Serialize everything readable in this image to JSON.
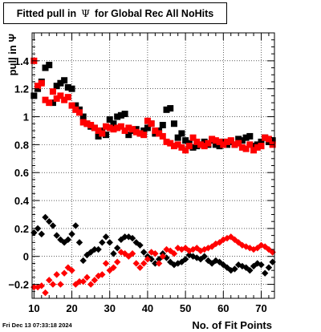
{
  "title": {
    "prefix": "Fitted pull in",
    "symbol": "Ψ",
    "suffix": "for Global Rec All NoHits"
  },
  "timestamp": "Fri Dec 13 07:33:18 2024",
  "chart_data": {
    "type": "scatter",
    "xlabel": "No. of Fit Points",
    "ylabel": "pull in Ψ",
    "xlim": [
      9.5,
      73.5
    ],
    "ylim": [
      -0.3,
      1.6
    ],
    "xticks": [
      10,
      20,
      30,
      40,
      50,
      60,
      70
    ],
    "yticks": [
      -0.2,
      0,
      0.2,
      0.4,
      0.6,
      0.8,
      1,
      1.2,
      1.4
    ],
    "ytick_labels": [
      "−0.2",
      "0",
      "0.2",
      "0.4",
      "0.6",
      "0.8",
      "1",
      "1.2",
      "1.4"
    ],
    "grid": true,
    "colors": {
      "black": "#000000",
      "red": "#ff0000"
    },
    "x": [
      10,
      11,
      12,
      13,
      14,
      15,
      16,
      17,
      18,
      19,
      20,
      21,
      22,
      23,
      24,
      25,
      26,
      27,
      28,
      29,
      30,
      31,
      32,
      33,
      34,
      35,
      36,
      37,
      38,
      39,
      40,
      41,
      42,
      43,
      44,
      45,
      46,
      47,
      48,
      49,
      50,
      51,
      52,
      53,
      54,
      55,
      56,
      57,
      58,
      59,
      60,
      61,
      62,
      63,
      64,
      65,
      66,
      67,
      68,
      69,
      70,
      71,
      72,
      73
    ],
    "series": [
      {
        "color": "black",
        "values": [
          1.15,
          1.2,
          1.25,
          1.35,
          1.37,
          1.1,
          1.22,
          1.24,
          1.26,
          1.21,
          1.2,
          1.08,
          1.05,
          1.0,
          0.95,
          0.93,
          0.92,
          0.86,
          0.9,
          0.87,
          0.98,
          0.95,
          1.0,
          1.01,
          1.02,
          0.87,
          0.9,
          0.91,
          0.88,
          0.9,
          0.92,
          0.95,
          0.88,
          0.9,
          0.94,
          1.05,
          1.06,
          0.95,
          0.85,
          0.88,
          0.83,
          0.81,
          0.78,
          0.79,
          0.8,
          0.82,
          0.8,
          0.83,
          0.8,
          0.79,
          0.82,
          0.8,
          0.82,
          0.8,
          0.84,
          0.83,
          0.85,
          0.86,
          0.79,
          0.8,
          0.82,
          0.85,
          0.82,
          0.83
        ]
      },
      {
        "color": "red",
        "values": [
          1.4,
          1.22,
          1.24,
          1.12,
          1.1,
          1.18,
          1.13,
          1.15,
          1.12,
          1.14,
          1.08,
          1.05,
          1.03,
          0.96,
          0.95,
          0.94,
          0.92,
          0.9,
          0.88,
          0.93,
          0.92,
          0.91,
          0.92,
          0.93,
          0.9,
          0.92,
          0.91,
          0.89,
          0.88,
          0.87,
          0.97,
          0.95,
          0.9,
          0.88,
          0.86,
          0.82,
          0.81,
          0.79,
          0.8,
          0.78,
          0.76,
          0.79,
          0.85,
          0.82,
          0.8,
          0.79,
          0.81,
          0.84,
          0.83,
          0.82,
          0.8,
          0.82,
          0.83,
          0.8,
          0.81,
          0.78,
          0.77,
          0.8,
          0.76,
          0.78,
          0.79,
          0.85,
          0.84,
          0.8
        ]
      },
      {
        "color": "black",
        "values": [
          0.17,
          0.2,
          0.16,
          0.28,
          0.25,
          0.22,
          0.15,
          0.12,
          0.1,
          0.12,
          0.16,
          0.22,
          0.1,
          -0.03,
          0.01,
          0.03,
          0.05,
          0.05,
          0.1,
          0.14,
          0.1,
          0.02,
          0.06,
          0.12,
          0.14,
          0.14,
          0.13,
          0.1,
          0.08,
          0.03,
          0.0,
          -0.02,
          -0.05,
          -0.02,
          0.02,
          -0.01,
          -0.04,
          -0.06,
          -0.05,
          -0.04,
          -0.02,
          0.01,
          0.0,
          -0.01,
          -0.02,
          0.0,
          -0.03,
          -0.05,
          -0.03,
          -0.04,
          -0.06,
          -0.08,
          -0.1,
          -0.09,
          -0.06,
          -0.07,
          -0.08,
          -0.1,
          -0.07,
          -0.05,
          -0.06,
          -0.12,
          -0.08,
          -0.04
        ]
      },
      {
        "color": "red",
        "values": [
          -0.22,
          -0.22,
          -0.21,
          -0.26,
          -0.17,
          -0.2,
          -0.13,
          -0.2,
          -0.12,
          -0.08,
          -0.1,
          -0.2,
          -0.18,
          -0.18,
          -0.15,
          -0.2,
          -0.17,
          -0.14,
          -0.13,
          -0.05,
          -0.1,
          -0.08,
          -0.04,
          0.03,
          0.02,
          0.0,
          0.02,
          -0.05,
          -0.08,
          -0.05,
          -0.02,
          0.03,
          0.02,
          -0.05,
          0.0,
          0.05,
          0.04,
          0.02,
          0.06,
          0.05,
          0.06,
          0.04,
          0.05,
          0.06,
          0.04,
          0.05,
          0.06,
          0.07,
          0.09,
          0.1,
          0.12,
          0.13,
          0.14,
          0.12,
          0.1,
          0.08,
          0.07,
          0.06,
          0.05,
          0.06,
          0.08,
          0.07,
          0.05,
          0.03
        ]
      }
    ]
  }
}
